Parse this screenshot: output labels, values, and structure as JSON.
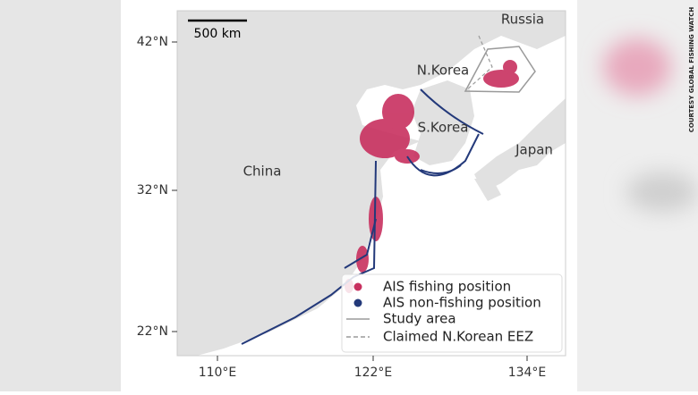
{
  "map": {
    "scale_bar": "500 km",
    "places": [
      "Russia",
      "N.Korea",
      "S.Korea",
      "Japan",
      "China"
    ],
    "y_ticks": [
      "42°N",
      "32°N",
      "22°N"
    ],
    "x_ticks": [
      "110°E",
      "122°E",
      "134°E"
    ],
    "legend": [
      "AIS fishing position",
      "AIS non-fishing position",
      "Study area",
      "Claimed N.Korean EEZ"
    ]
  },
  "credit": "COURTESY GLOBAL FISHING WATCH"
}
